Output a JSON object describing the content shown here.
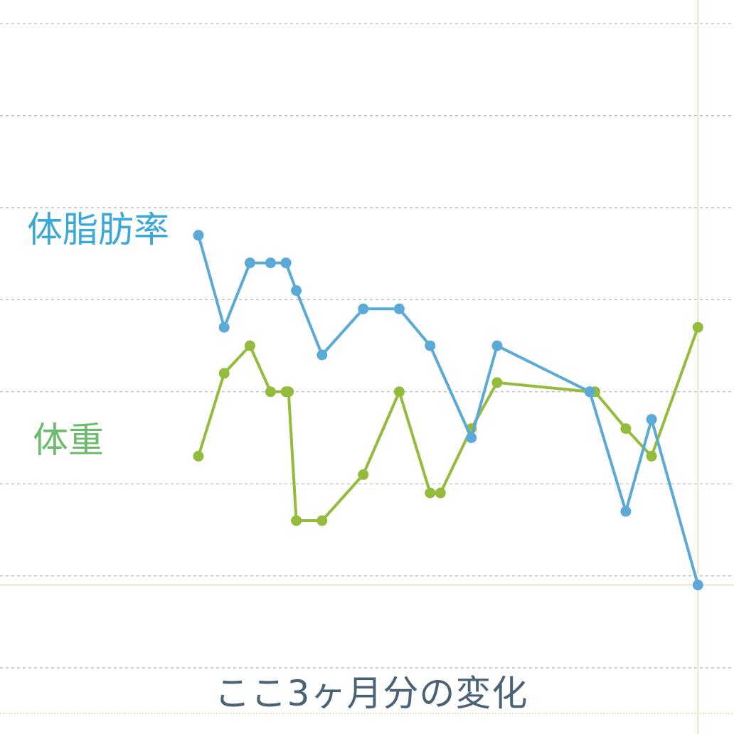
{
  "colors": {
    "body_fat": "#5aa9d6",
    "weight": "#93bc3c",
    "body_fat_label": "#3aa8d8",
    "weight_label": "#6cbb6c",
    "caption": "#4a6275",
    "grid": "#b4b4b4",
    "crosshair": "#eedcb0",
    "baseline": "#cfe3a8"
  },
  "chart_data": {
    "type": "line",
    "caption": "ここ3ヶ月分の変化",
    "grid": true,
    "grid_lines": 8,
    "ylim": [
      0,
      7
    ],
    "series": [
      {
        "name": "体脂肪率",
        "color": "#5aa9d6",
        "points": [
          [
            0.5,
            4.7
          ],
          [
            1.0,
            3.7
          ],
          [
            1.5,
            4.4
          ],
          [
            1.9,
            4.4
          ],
          [
            2.2,
            4.4
          ],
          [
            2.4,
            4.1
          ],
          [
            2.9,
            3.4
          ],
          [
            3.7,
            3.9
          ],
          [
            4.4,
            3.9
          ],
          [
            5.0,
            3.5
          ],
          [
            5.8,
            2.5
          ],
          [
            6.3,
            3.5
          ],
          [
            8.1,
            3.0
          ],
          [
            8.8,
            1.7
          ],
          [
            9.3,
            2.7
          ],
          [
            10.2,
            0.9
          ]
        ]
      },
      {
        "name": "体重",
        "color": "#93bc3c",
        "points": [
          [
            0.5,
            2.3
          ],
          [
            1.0,
            3.2
          ],
          [
            1.5,
            3.5
          ],
          [
            1.9,
            3.0
          ],
          [
            2.2,
            3.0
          ],
          [
            2.25,
            3.0
          ],
          [
            2.4,
            1.6
          ],
          [
            2.9,
            1.6
          ],
          [
            3.7,
            2.1
          ],
          [
            4.4,
            3.0
          ],
          [
            5.0,
            1.9
          ],
          [
            5.2,
            1.9
          ],
          [
            5.8,
            2.6
          ],
          [
            6.3,
            3.1
          ],
          [
            8.1,
            3.0
          ],
          [
            8.2,
            3.0
          ],
          [
            8.8,
            2.6
          ],
          [
            9.3,
            2.3
          ],
          [
            10.2,
            3.7
          ]
        ]
      }
    ]
  }
}
